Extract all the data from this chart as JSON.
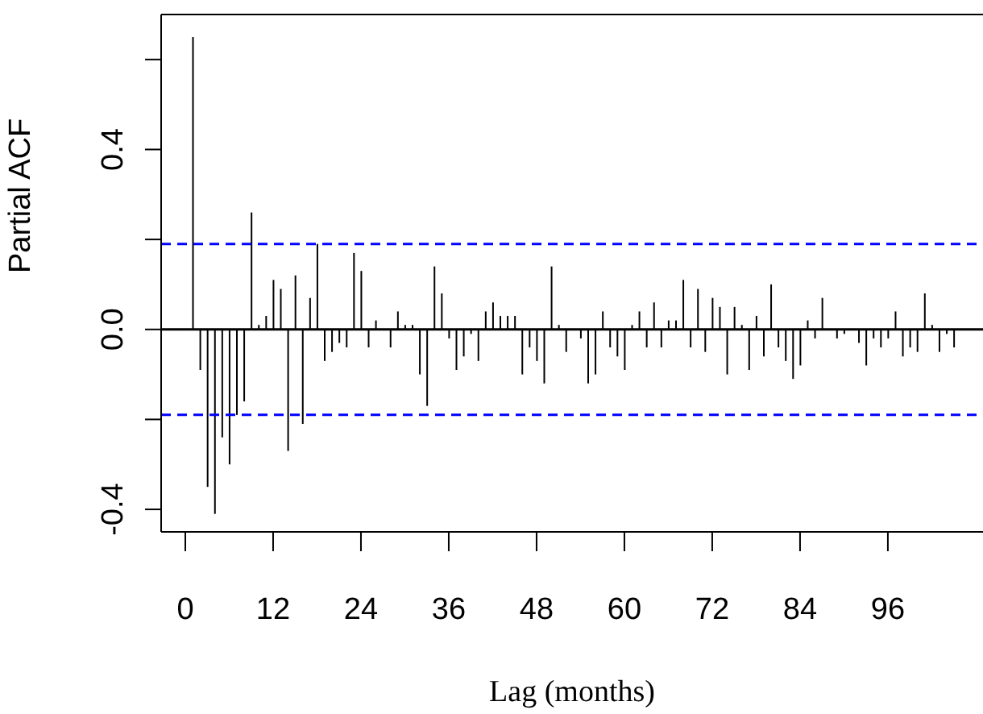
{
  "chart_data": {
    "type": "bar",
    "xlabel": "Lag (months)",
    "ylabel": "Partial ACF",
    "x": [
      1,
      2,
      3,
      4,
      5,
      6,
      7,
      8,
      9,
      10,
      11,
      12,
      13,
      14,
      15,
      16,
      17,
      18,
      19,
      20,
      21,
      22,
      23,
      24,
      25,
      26,
      27,
      28,
      29,
      30,
      31,
      32,
      33,
      34,
      35,
      36,
      37,
      38,
      39,
      40,
      41,
      42,
      43,
      44,
      45,
      46,
      47,
      48,
      49,
      50,
      51,
      52,
      53,
      54,
      55,
      56,
      57,
      58,
      59,
      60,
      61,
      62,
      63,
      64,
      65,
      66,
      67,
      68,
      69,
      70,
      71,
      72,
      73,
      74,
      75,
      76,
      77,
      78,
      79,
      80,
      81,
      82,
      83,
      84,
      85,
      86,
      87,
      88,
      89,
      90,
      91,
      92,
      93,
      94,
      95,
      96,
      97,
      98,
      99,
      100,
      101,
      102,
      103,
      104,
      105
    ],
    "values": [
      0.65,
      -0.09,
      -0.35,
      -0.41,
      -0.24,
      -0.3,
      -0.19,
      -0.16,
      0.26,
      0.01,
      0.03,
      0.11,
      0.09,
      -0.27,
      0.12,
      -0.21,
      0.07,
      0.19,
      -0.07,
      -0.05,
      -0.03,
      -0.04,
      0.17,
      0.13,
      -0.04,
      0.02,
      0.0,
      -0.04,
      0.04,
      0.01,
      0.01,
      -0.1,
      -0.17,
      0.14,
      0.08,
      -0.02,
      -0.09,
      -0.06,
      -0.01,
      -0.07,
      0.04,
      0.06,
      0.03,
      0.03,
      0.03,
      -0.1,
      -0.04,
      -0.07,
      -0.12,
      0.14,
      0.01,
      -0.05,
      0.0,
      -0.02,
      -0.12,
      -0.1,
      0.04,
      -0.04,
      -0.06,
      -0.09,
      0.01,
      0.04,
      -0.04,
      0.06,
      -0.04,
      0.02,
      0.02,
      0.11,
      -0.04,
      0.09,
      -0.05,
      0.07,
      0.05,
      -0.1,
      0.05,
      0.01,
      -0.09,
      0.03,
      -0.06,
      0.1,
      -0.04,
      -0.07,
      -0.11,
      -0.08,
      0.02,
      -0.02,
      0.07,
      0.0,
      -0.02,
      -0.01,
      0.0,
      -0.03,
      -0.08,
      -0.02,
      -0.04,
      -0.02,
      0.04,
      -0.06,
      -0.04,
      -0.05,
      0.08,
      0.01,
      -0.05,
      -0.01,
      -0.04
    ],
    "color": "#000000",
    "xlim": [
      -3.3,
      109
    ],
    "xticks": [
      0,
      12,
      24,
      36,
      48,
      60,
      72,
      84,
      96
    ],
    "ylim": [
      -0.45,
      0.7
    ],
    "yticks": [
      -0.4,
      {
        "value": -0.2,
        "label": null
      },
      {
        "value": 0,
        "label": "0.0"
      },
      {
        "value": 0.2,
        "label": null
      },
      0.4,
      {
        "value": 0.6,
        "label": null
      }
    ],
    "ref_lines": [
      {
        "axis": "y",
        "value": 0.19,
        "color": "#0000ff",
        "line_style": "dashed"
      },
      {
        "axis": "y",
        "value": -0.19,
        "color": "#0000ff",
        "line_style": "dashed"
      },
      {
        "axis": "y",
        "value": 0,
        "color": "#000000",
        "line_style": "solid"
      }
    ]
  }
}
